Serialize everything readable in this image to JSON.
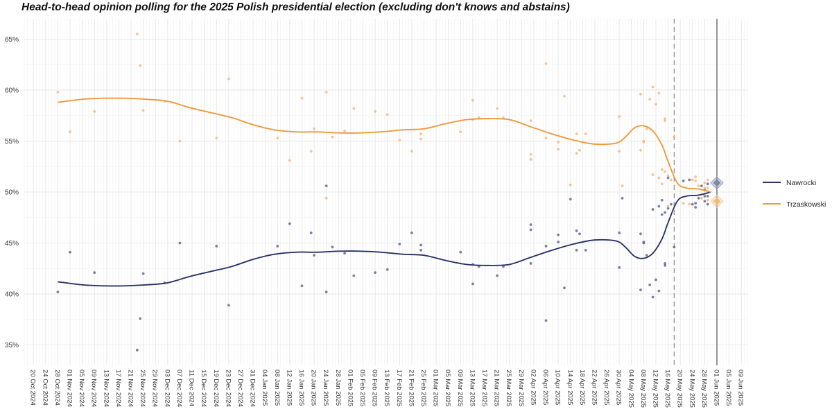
{
  "chart_data": {
    "type": "line",
    "title": "Head-to-head opinion polling for the 2025 Polish presidential election (excluding don't knows and abstains)",
    "xlabel": "",
    "ylabel": "",
    "x_axis": {
      "type": "date",
      "min": "2024-10-17",
      "max": "2025-06-11"
    },
    "y_axis": {
      "min": 33,
      "max": 67,
      "ticks": [
        35,
        40,
        45,
        50,
        55,
        60,
        65
      ],
      "tick_suffix": "%"
    },
    "x_tick_labels": [
      "20 Oct 2024",
      "24 Oct 2024",
      "28 Oct 2024",
      "01 Nov 2024",
      "05 Nov 2024",
      "09 Nov 2024",
      "13 Nov 2024",
      "17 Nov 2024",
      "21 Nov 2024",
      "25 Nov 2024",
      "29 Nov 2024",
      "03 Dec 2024",
      "07 Dec 2024",
      "11 Dec 2024",
      "15 Dec 2024",
      "19 Dec 2024",
      "23 Dec 2024",
      "27 Dec 2024",
      "31 Dec 2024",
      "04 Jan 2025",
      "08 Jan 2025",
      "12 Jan 2025",
      "16 Jan 2025",
      "20 Jan 2025",
      "24 Jan 2025",
      "28 Jan 2025",
      "01 Feb 2025",
      "05 Feb 2025",
      "09 Feb 2025",
      "13 Feb 2025",
      "17 Feb 2025",
      "21 Feb 2025",
      "25 Feb 2025",
      "01 Mar 2025",
      "05 Mar 2025",
      "09 Mar 2025",
      "13 Mar 2025",
      "17 Mar 2025",
      "21 Mar 2025",
      "25 Mar 2025",
      "29 Mar 2025",
      "02 Apr 2025",
      "06 Apr 2025",
      "10 Apr 2025",
      "14 Apr 2025",
      "18 Apr 2025",
      "22 Apr 2025",
      "26 Apr 2025",
      "30 Apr 2025",
      "04 May 2025",
      "08 May 2025",
      "12 May 2025",
      "16 May 2025",
      "20 May 2025",
      "24 May 2025",
      "28 May 2025",
      "01 Jun 2025",
      "05 Jun 2025",
      "09 Jun 2025"
    ],
    "grid": true,
    "legend_position": "right",
    "vertical_lines": [
      {
        "date": "2025-05-18",
        "style": "dashed"
      },
      {
        "date": "2025-06-01",
        "style": "solid"
      }
    ],
    "series": [
      {
        "name": "Nawrocki",
        "color": "#2b3467",
        "trend": [
          [
            "2024-10-28",
            41.2
          ],
          [
            "2024-11-05",
            40.9
          ],
          [
            "2024-11-12",
            40.8
          ],
          [
            "2024-11-19",
            40.8
          ],
          [
            "2024-11-26",
            40.9
          ],
          [
            "2024-12-03",
            41.1
          ],
          [
            "2024-12-10",
            41.7
          ],
          [
            "2024-12-17",
            42.2
          ],
          [
            "2024-12-24",
            42.7
          ],
          [
            "2024-12-31",
            43.4
          ],
          [
            "2025-01-07",
            43.9
          ],
          [
            "2025-01-14",
            44.1
          ],
          [
            "2025-01-21",
            44.1
          ],
          [
            "2025-01-28",
            44.2
          ],
          [
            "2025-02-04",
            44.2
          ],
          [
            "2025-02-11",
            44.1
          ],
          [
            "2025-02-18",
            43.9
          ],
          [
            "2025-02-25",
            43.8
          ],
          [
            "2025-03-04",
            43.3
          ],
          [
            "2025-03-11",
            42.9
          ],
          [
            "2025-03-18",
            42.8
          ],
          [
            "2025-03-25",
            42.9
          ],
          [
            "2025-04-01",
            43.6
          ],
          [
            "2025-04-08",
            44.3
          ],
          [
            "2025-04-15",
            44.9
          ],
          [
            "2025-04-22",
            45.3
          ],
          [
            "2025-04-29",
            45.2
          ],
          [
            "2025-05-02",
            44.6
          ],
          [
            "2025-05-05",
            43.7
          ],
          [
            "2025-05-08",
            43.5
          ],
          [
            "2025-05-11",
            44.0
          ],
          [
            "2025-05-14",
            45.4
          ],
          [
            "2025-05-16",
            47.0
          ],
          [
            "2025-05-19",
            49.1
          ],
          [
            "2025-05-22",
            49.6
          ],
          [
            "2025-05-26",
            49.7
          ],
          [
            "2025-05-30",
            50.0
          ]
        ],
        "polls": [
          [
            "2024-10-28",
            40.2
          ],
          [
            "2024-11-01",
            44.1
          ],
          [
            "2024-11-09",
            42.1
          ],
          [
            "2024-11-23",
            34.5
          ],
          [
            "2024-11-24",
            37.6
          ],
          [
            "2024-11-25",
            42.0
          ],
          [
            "2024-12-02",
            41.1
          ],
          [
            "2024-12-07",
            45.0
          ],
          [
            "2024-12-19",
            44.7
          ],
          [
            "2024-12-23",
            38.9
          ],
          [
            "2025-01-08",
            44.7
          ],
          [
            "2025-01-12",
            46.9
          ],
          [
            "2025-01-16",
            40.8
          ],
          [
            "2025-01-19",
            46.0
          ],
          [
            "2025-01-20",
            43.8
          ],
          [
            "2025-01-24",
            50.6
          ],
          [
            "2025-01-24",
            40.2
          ],
          [
            "2025-01-26",
            44.6
          ],
          [
            "2025-01-30",
            44.0
          ],
          [
            "2025-02-02",
            41.8
          ],
          [
            "2025-02-09",
            42.1
          ],
          [
            "2025-02-13",
            42.4
          ],
          [
            "2025-02-17",
            44.9
          ],
          [
            "2025-02-21",
            46.0
          ],
          [
            "2025-02-24",
            44.8
          ],
          [
            "2025-02-24",
            44.3
          ],
          [
            "2025-03-09",
            44.1
          ],
          [
            "2025-03-13",
            42.9
          ],
          [
            "2025-03-13",
            41.0
          ],
          [
            "2025-03-15",
            42.7
          ],
          [
            "2025-03-21",
            41.8
          ],
          [
            "2025-03-23",
            42.7
          ],
          [
            "2025-04-01",
            46.8
          ],
          [
            "2025-04-01",
            46.3
          ],
          [
            "2025-04-01",
            43.0
          ],
          [
            "2025-04-06",
            37.4
          ],
          [
            "2025-04-06",
            44.7
          ],
          [
            "2025-04-10",
            45.8
          ],
          [
            "2025-04-10",
            45.1
          ],
          [
            "2025-04-12",
            40.6
          ],
          [
            "2025-04-14",
            49.3
          ],
          [
            "2025-04-16",
            46.2
          ],
          [
            "2025-04-17",
            45.9
          ],
          [
            "2025-04-16",
            44.3
          ],
          [
            "2025-04-19",
            44.3
          ],
          [
            "2025-04-30",
            46.0
          ],
          [
            "2025-04-30",
            42.6
          ],
          [
            "2025-05-01",
            49.4
          ],
          [
            "2025-05-07",
            40.4
          ],
          [
            "2025-05-07",
            45.9
          ],
          [
            "2025-05-08",
            45.0
          ],
          [
            "2025-05-08",
            45.1
          ],
          [
            "2025-05-09",
            43.8
          ],
          [
            "2025-05-10",
            40.9
          ],
          [
            "2025-05-11",
            39.7
          ],
          [
            "2025-05-12",
            41.4
          ],
          [
            "2025-05-13",
            40.3
          ],
          [
            "2025-05-11",
            48.3
          ],
          [
            "2025-05-13",
            48.6
          ],
          [
            "2025-05-14",
            49.2
          ],
          [
            "2025-05-14",
            47.8
          ],
          [
            "2025-05-15",
            48.0
          ],
          [
            "2025-05-15",
            43.0
          ],
          [
            "2025-05-15",
            42.8
          ],
          [
            "2025-05-16",
            51.4
          ],
          [
            "2025-05-16",
            48.4
          ],
          [
            "2025-05-17",
            48.8
          ],
          [
            "2025-05-18",
            44.6
          ],
          [
            "2025-05-21",
            51.1
          ],
          [
            "2025-05-23",
            51.2
          ],
          [
            "2025-05-24",
            48.8
          ],
          [
            "2025-05-25",
            48.5
          ],
          [
            "2025-05-25",
            48.9
          ],
          [
            "2025-05-26",
            49.4
          ],
          [
            "2025-05-27",
            50.6
          ],
          [
            "2025-05-28",
            50.2
          ],
          [
            "2025-05-28",
            49.6
          ],
          [
            "2025-05-28",
            49.1
          ],
          [
            "2025-05-29",
            50.8
          ],
          [
            "2025-05-29",
            49.6
          ],
          [
            "2025-05-29",
            48.8
          ]
        ],
        "result": {
          "date": "2025-06-01",
          "value": 50.9
        }
      },
      {
        "name": "Trzaskowski",
        "color": "#ef9a3a",
        "trend": [
          [
            "2024-10-28",
            58.8
          ],
          [
            "2024-11-05",
            59.1
          ],
          [
            "2024-11-12",
            59.2
          ],
          [
            "2024-11-19",
            59.2
          ],
          [
            "2024-11-26",
            59.1
          ],
          [
            "2024-12-03",
            58.9
          ],
          [
            "2024-12-10",
            58.3
          ],
          [
            "2024-12-17",
            57.8
          ],
          [
            "2024-12-24",
            57.3
          ],
          [
            "2024-12-31",
            56.6
          ],
          [
            "2025-01-07",
            56.1
          ],
          [
            "2025-01-14",
            55.9
          ],
          [
            "2025-01-21",
            55.9
          ],
          [
            "2025-01-28",
            55.8
          ],
          [
            "2025-02-04",
            55.8
          ],
          [
            "2025-02-11",
            55.9
          ],
          [
            "2025-02-18",
            56.1
          ],
          [
            "2025-02-25",
            56.2
          ],
          [
            "2025-03-04",
            56.7
          ],
          [
            "2025-03-11",
            57.1
          ],
          [
            "2025-03-18",
            57.2
          ],
          [
            "2025-03-25",
            57.1
          ],
          [
            "2025-04-01",
            56.4
          ],
          [
            "2025-04-08",
            55.7
          ],
          [
            "2025-04-15",
            55.1
          ],
          [
            "2025-04-22",
            54.7
          ],
          [
            "2025-04-29",
            54.8
          ],
          [
            "2025-05-02",
            55.4
          ],
          [
            "2025-05-05",
            56.3
          ],
          [
            "2025-05-08",
            56.5
          ],
          [
            "2025-05-11",
            56.0
          ],
          [
            "2025-05-14",
            54.6
          ],
          [
            "2025-05-16",
            53.0
          ],
          [
            "2025-05-19",
            50.9
          ],
          [
            "2025-05-22",
            50.4
          ],
          [
            "2025-05-26",
            50.3
          ],
          [
            "2025-05-30",
            50.0
          ]
        ],
        "polls": [
          [
            "2024-10-28",
            59.8
          ],
          [
            "2024-11-01",
            55.9
          ],
          [
            "2024-11-09",
            57.9
          ],
          [
            "2024-11-23",
            65.5
          ],
          [
            "2024-11-24",
            62.4
          ],
          [
            "2024-11-25",
            58.0
          ],
          [
            "2024-12-02",
            58.9
          ],
          [
            "2024-12-07",
            55.0
          ],
          [
            "2024-12-19",
            55.3
          ],
          [
            "2024-12-23",
            61.1
          ],
          [
            "2025-01-08",
            55.3
          ],
          [
            "2025-01-12",
            53.1
          ],
          [
            "2025-01-16",
            59.2
          ],
          [
            "2025-01-19",
            54.0
          ],
          [
            "2025-01-20",
            56.2
          ],
          [
            "2025-01-24",
            49.4
          ],
          [
            "2025-01-24",
            59.8
          ],
          [
            "2025-01-26",
            55.4
          ],
          [
            "2025-01-30",
            56.0
          ],
          [
            "2025-02-02",
            58.2
          ],
          [
            "2025-02-09",
            57.9
          ],
          [
            "2025-02-13",
            57.6
          ],
          [
            "2025-02-17",
            55.1
          ],
          [
            "2025-02-21",
            54.0
          ],
          [
            "2025-02-24",
            55.2
          ],
          [
            "2025-02-24",
            55.7
          ],
          [
            "2025-03-09",
            55.9
          ],
          [
            "2025-03-13",
            57.1
          ],
          [
            "2025-03-13",
            59.0
          ],
          [
            "2025-03-15",
            57.3
          ],
          [
            "2025-03-21",
            58.2
          ],
          [
            "2025-03-23",
            57.3
          ],
          [
            "2025-04-01",
            53.2
          ],
          [
            "2025-04-01",
            53.7
          ],
          [
            "2025-04-01",
            57.0
          ],
          [
            "2025-04-06",
            62.6
          ],
          [
            "2025-04-06",
            55.3
          ],
          [
            "2025-04-10",
            54.2
          ],
          [
            "2025-04-10",
            54.9
          ],
          [
            "2025-04-12",
            59.4
          ],
          [
            "2025-04-14",
            50.7
          ],
          [
            "2025-04-16",
            53.8
          ],
          [
            "2025-04-17",
            54.1
          ],
          [
            "2025-04-16",
            55.7
          ],
          [
            "2025-04-19",
            55.7
          ],
          [
            "2025-04-30",
            54.0
          ],
          [
            "2025-04-30",
            57.4
          ],
          [
            "2025-05-01",
            50.6
          ],
          [
            "2025-05-07",
            59.6
          ],
          [
            "2025-05-07",
            54.1
          ],
          [
            "2025-05-08",
            55.0
          ],
          [
            "2025-05-08",
            54.9
          ],
          [
            "2025-05-09",
            56.2
          ],
          [
            "2025-05-10",
            59.1
          ],
          [
            "2025-05-11",
            60.3
          ],
          [
            "2025-05-12",
            58.6
          ],
          [
            "2025-05-13",
            59.7
          ],
          [
            "2025-05-11",
            51.7
          ],
          [
            "2025-05-13",
            51.4
          ],
          [
            "2025-05-14",
            50.8
          ],
          [
            "2025-05-14",
            52.2
          ],
          [
            "2025-05-15",
            52.0
          ],
          [
            "2025-05-15",
            57.0
          ],
          [
            "2025-05-15",
            57.2
          ],
          [
            "2025-05-16",
            48.6
          ],
          [
            "2025-05-16",
            51.6
          ],
          [
            "2025-05-17",
            51.2
          ],
          [
            "2025-05-18",
            55.4
          ],
          [
            "2025-05-21",
            48.9
          ],
          [
            "2025-05-23",
            48.8
          ],
          [
            "2025-05-24",
            51.2
          ],
          [
            "2025-05-25",
            51.5
          ],
          [
            "2025-05-25",
            51.1
          ],
          [
            "2025-05-26",
            50.6
          ],
          [
            "2025-05-27",
            49.4
          ],
          [
            "2025-05-28",
            49.8
          ],
          [
            "2025-05-28",
            50.4
          ],
          [
            "2025-05-28",
            50.9
          ],
          [
            "2025-05-29",
            49.2
          ],
          [
            "2025-05-29",
            50.4
          ],
          [
            "2025-05-29",
            51.2
          ]
        ],
        "result": {
          "date": "2025-06-01",
          "value": 49.1
        }
      }
    ]
  }
}
